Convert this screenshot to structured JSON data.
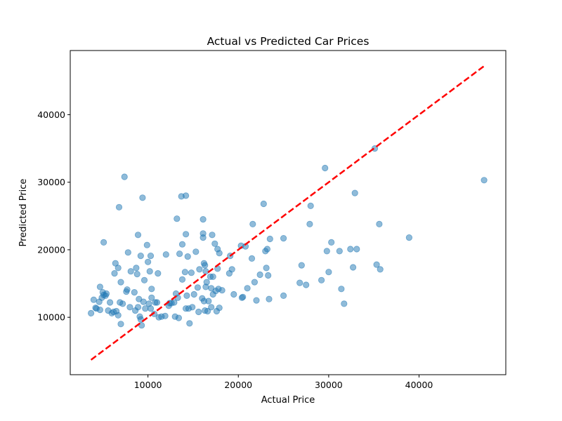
{
  "chart_data": {
    "type": "scatter",
    "title": "Actual vs Predicted Car Prices",
    "xlabel": "Actual Price",
    "ylabel": "Predicted Price",
    "xlim": [
      1400,
      49600
    ],
    "ylim": [
      1500,
      49500
    ],
    "xticks": [
      10000,
      20000,
      30000,
      40000
    ],
    "yticks": [
      10000,
      20000,
      30000,
      40000
    ],
    "grid": false,
    "point_color": "#1f77b4",
    "point_alpha": 0.5,
    "reference_line": {
      "x": [
        3700,
        47300
      ],
      "y": [
        3700,
        47300
      ],
      "color": "#ff0000",
      "style": "dashed"
    },
    "points": [
      [
        3700,
        10600
      ],
      [
        4000,
        12600
      ],
      [
        4200,
        11400
      ],
      [
        4300,
        11300
      ],
      [
        4600,
        12300
      ],
      [
        4700,
        14500
      ],
      [
        4700,
        11100
      ],
      [
        4900,
        12900
      ],
      [
        5000,
        13700
      ],
      [
        5100,
        13300
      ],
      [
        5100,
        21100
      ],
      [
        5300,
        13200
      ],
      [
        5400,
        13500
      ],
      [
        5600,
        11000
      ],
      [
        5800,
        12200
      ],
      [
        6000,
        10600
      ],
      [
        6200,
        10800
      ],
      [
        6300,
        16500
      ],
      [
        6400,
        18000
      ],
      [
        6500,
        10900
      ],
      [
        6700,
        10300
      ],
      [
        6700,
        17300
      ],
      [
        6800,
        26300
      ],
      [
        6900,
        12200
      ],
      [
        7000,
        9000
      ],
      [
        7000,
        15200
      ],
      [
        7200,
        12000
      ],
      [
        7400,
        30800
      ],
      [
        7600,
        13800
      ],
      [
        7700,
        14100
      ],
      [
        7800,
        19600
      ],
      [
        8000,
        11500
      ],
      [
        8100,
        16800
      ],
      [
        8500,
        13700
      ],
      [
        8600,
        11000
      ],
      [
        8700,
        17300
      ],
      [
        8800,
        16400
      ],
      [
        8900,
        22200
      ],
      [
        8900,
        11500
      ],
      [
        9000,
        12700
      ],
      [
        9100,
        10100
      ],
      [
        9200,
        19100
      ],
      [
        9200,
        9700
      ],
      [
        9300,
        8800
      ],
      [
        9400,
        27700
      ],
      [
        9500,
        12300
      ],
      [
        9600,
        15500
      ],
      [
        9700,
        11300
      ],
      [
        9900,
        20700
      ],
      [
        10000,
        18200
      ],
      [
        10100,
        12000
      ],
      [
        10200,
        16800
      ],
      [
        10300,
        11300
      ],
      [
        10300,
        19100
      ],
      [
        10400,
        14200
      ],
      [
        10400,
        12900
      ],
      [
        10700,
        10500
      ],
      [
        10800,
        12200
      ],
      [
        11000,
        12200
      ],
      [
        11100,
        16500
      ],
      [
        11200,
        10000
      ],
      [
        11500,
        10100
      ],
      [
        11900,
        10200
      ],
      [
        12000,
        19300
      ],
      [
        12300,
        11700
      ],
      [
        12400,
        12100
      ],
      [
        12600,
        12100
      ],
      [
        12900,
        12200
      ],
      [
        13000,
        10100
      ],
      [
        13100,
        13500
      ],
      [
        13200,
        24600
      ],
      [
        13300,
        12900
      ],
      [
        13400,
        9900
      ],
      [
        13500,
        19400
      ],
      [
        13700,
        27900
      ],
      [
        13800,
        15600
      ],
      [
        13800,
        20800
      ],
      [
        14100,
        16700
      ],
      [
        14200,
        22300
      ],
      [
        14200,
        28000
      ],
      [
        14200,
        11300
      ],
      [
        14300,
        13200
      ],
      [
        14400,
        19000
      ],
      [
        14500,
        11300
      ],
      [
        14600,
        9100
      ],
      [
        14800,
        16600
      ],
      [
        14900,
        11500
      ],
      [
        15100,
        13400
      ],
      [
        15300,
        19700
      ],
      [
        15500,
        14400
      ],
      [
        15600,
        10800
      ],
      [
        15700,
        17100
      ],
      [
        16000,
        12800
      ],
      [
        16100,
        24500
      ],
      [
        16100,
        22400
      ],
      [
        16100,
        21800
      ],
      [
        16200,
        18000
      ],
      [
        16200,
        12400
      ],
      [
        16300,
        11000
      ],
      [
        16300,
        17700
      ],
      [
        16400,
        16800
      ],
      [
        16400,
        14500
      ],
      [
        16500,
        15200
      ],
      [
        16600,
        10900
      ],
      [
        16700,
        12400
      ],
      [
        16900,
        16000
      ],
      [
        17000,
        11500
      ],
      [
        17000,
        14300
      ],
      [
        17100,
        22200
      ],
      [
        17200,
        16000
      ],
      [
        17200,
        13400
      ],
      [
        17400,
        20900
      ],
      [
        17500,
        13900
      ],
      [
        17600,
        10900
      ],
      [
        17700,
        17200
      ],
      [
        17700,
        20100
      ],
      [
        17900,
        11400
      ],
      [
        17800,
        14200
      ],
      [
        17900,
        19500
      ],
      [
        18200,
        14000
      ],
      [
        19000,
        16500
      ],
      [
        19100,
        19100
      ],
      [
        19300,
        17100
      ],
      [
        19500,
        13400
      ],
      [
        20300,
        20600
      ],
      [
        20400,
        12900
      ],
      [
        20500,
        13000
      ],
      [
        20800,
        20500
      ],
      [
        21000,
        14300
      ],
      [
        21500,
        18700
      ],
      [
        21600,
        23800
      ],
      [
        21800,
        15200
      ],
      [
        22000,
        12500
      ],
      [
        22400,
        16300
      ],
      [
        22800,
        26800
      ],
      [
        23000,
        19800
      ],
      [
        23100,
        17300
      ],
      [
        23200,
        20100
      ],
      [
        23300,
        16200
      ],
      [
        23400,
        12700
      ],
      [
        23500,
        21600
      ],
      [
        25000,
        21700
      ],
      [
        25000,
        13200
      ],
      [
        26800,
        15100
      ],
      [
        27000,
        17700
      ],
      [
        27500,
        14800
      ],
      [
        27900,
        23800
      ],
      [
        28000,
        26500
      ],
      [
        29200,
        15500
      ],
      [
        29600,
        32100
      ],
      [
        29800,
        19800
      ],
      [
        30000,
        16700
      ],
      [
        30300,
        21100
      ],
      [
        31200,
        19800
      ],
      [
        31400,
        14200
      ],
      [
        31700,
        12000
      ],
      [
        32400,
        20100
      ],
      [
        32700,
        17400
      ],
      [
        32900,
        28400
      ],
      [
        33100,
        20100
      ],
      [
        35100,
        35000
      ],
      [
        35300,
        17800
      ],
      [
        35600,
        23800
      ],
      [
        35700,
        17100
      ],
      [
        38900,
        21800
      ],
      [
        47200,
        30300
      ]
    ]
  }
}
